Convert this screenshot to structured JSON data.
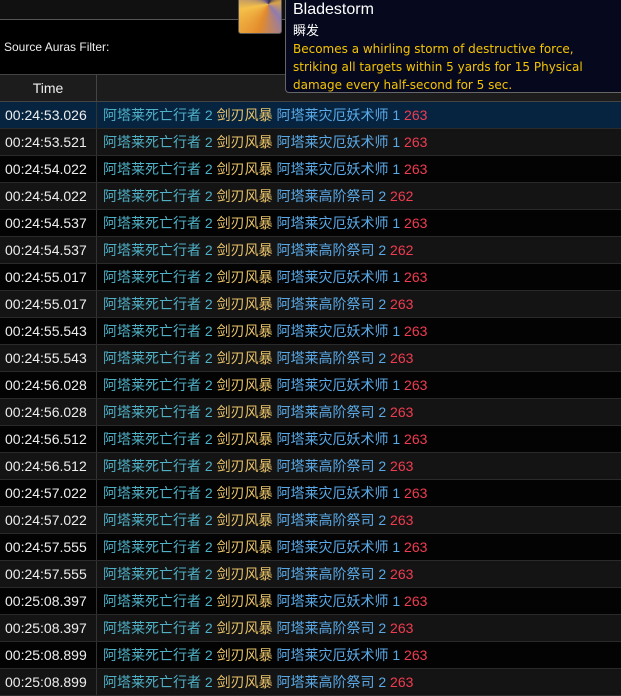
{
  "filter": {
    "label": "Source Auras Filter:"
  },
  "table": {
    "time_header": "Time",
    "event_header": ""
  },
  "tooltip": {
    "title": "Bladestorm",
    "cast": "瞬发",
    "description": "Becomes a whirling storm of destructive force, striking all targets within 5 yards for 15 Physical damage every half-second for 5 sec."
  },
  "colors": {
    "source": "#4fb0c6",
    "spell": "#e8c36a",
    "target": "#5aa9e6",
    "damage": "#f03c50",
    "selected_row": "#062440"
  },
  "rows": [
    {
      "time": "00:24:53.026",
      "source": "阿塔莱死亡行者 2",
      "spell": "剑刃风暴",
      "target": "阿塔莱灾厄妖术师 1",
      "amount": "263"
    },
    {
      "time": "00:24:53.521",
      "source": "阿塔莱死亡行者 2",
      "spell": "剑刃风暴",
      "target": "阿塔莱灾厄妖术师 1",
      "amount": "263"
    },
    {
      "time": "00:24:54.022",
      "source": "阿塔莱死亡行者 2",
      "spell": "剑刃风暴",
      "target": "阿塔莱灾厄妖术师 1",
      "amount": "263"
    },
    {
      "time": "00:24:54.022",
      "source": "阿塔莱死亡行者 2",
      "spell": "剑刃风暴",
      "target": "阿塔莱高阶祭司 2",
      "amount": "262"
    },
    {
      "time": "00:24:54.537",
      "source": "阿塔莱死亡行者 2",
      "spell": "剑刃风暴",
      "target": "阿塔莱灾厄妖术师 1",
      "amount": "263"
    },
    {
      "time": "00:24:54.537",
      "source": "阿塔莱死亡行者 2",
      "spell": "剑刃风暴",
      "target": "阿塔莱高阶祭司 2",
      "amount": "262"
    },
    {
      "time": "00:24:55.017",
      "source": "阿塔莱死亡行者 2",
      "spell": "剑刃风暴",
      "target": "阿塔莱灾厄妖术师 1",
      "amount": "263"
    },
    {
      "time": "00:24:55.017",
      "source": "阿塔莱死亡行者 2",
      "spell": "剑刃风暴",
      "target": "阿塔莱高阶祭司 2",
      "amount": "263"
    },
    {
      "time": "00:24:55.543",
      "source": "阿塔莱死亡行者 2",
      "spell": "剑刃风暴",
      "target": "阿塔莱灾厄妖术师 1",
      "amount": "263"
    },
    {
      "time": "00:24:55.543",
      "source": "阿塔莱死亡行者 2",
      "spell": "剑刃风暴",
      "target": "阿塔莱高阶祭司 2",
      "amount": "263"
    },
    {
      "time": "00:24:56.028",
      "source": "阿塔莱死亡行者 2",
      "spell": "剑刃风暴",
      "target": "阿塔莱灾厄妖术师 1",
      "amount": "263"
    },
    {
      "time": "00:24:56.028",
      "source": "阿塔莱死亡行者 2",
      "spell": "剑刃风暴",
      "target": "阿塔莱高阶祭司 2",
      "amount": "263"
    },
    {
      "time": "00:24:56.512",
      "source": "阿塔莱死亡行者 2",
      "spell": "剑刃风暴",
      "target": "阿塔莱灾厄妖术师 1",
      "amount": "263"
    },
    {
      "time": "00:24:56.512",
      "source": "阿塔莱死亡行者 2",
      "spell": "剑刃风暴",
      "target": "阿塔莱高阶祭司 2",
      "amount": "263"
    },
    {
      "time": "00:24:57.022",
      "source": "阿塔莱死亡行者 2",
      "spell": "剑刃风暴",
      "target": "阿塔莱灾厄妖术师 1",
      "amount": "263"
    },
    {
      "time": "00:24:57.022",
      "source": "阿塔莱死亡行者 2",
      "spell": "剑刃风暴",
      "target": "阿塔莱高阶祭司 2",
      "amount": "263"
    },
    {
      "time": "00:24:57.555",
      "source": "阿塔莱死亡行者 2",
      "spell": "剑刃风暴",
      "target": "阿塔莱灾厄妖术师 1",
      "amount": "263"
    },
    {
      "time": "00:24:57.555",
      "source": "阿塔莱死亡行者 2",
      "spell": "剑刃风暴",
      "target": "阿塔莱高阶祭司 2",
      "amount": "263"
    },
    {
      "time": "00:25:08.397",
      "source": "阿塔莱死亡行者 2",
      "spell": "剑刃风暴",
      "target": "阿塔莱灾厄妖术师 1",
      "amount": "263"
    },
    {
      "time": "00:25:08.397",
      "source": "阿塔莱死亡行者 2",
      "spell": "剑刃风暴",
      "target": "阿塔莱高阶祭司 2",
      "amount": "263"
    },
    {
      "time": "00:25:08.899",
      "source": "阿塔莱死亡行者 2",
      "spell": "剑刃风暴",
      "target": "阿塔莱灾厄妖术师 1",
      "amount": "263"
    },
    {
      "time": "00:25:08.899",
      "source": "阿塔莱死亡行者 2",
      "spell": "剑刃风暴",
      "target": "阿塔莱高阶祭司 2",
      "amount": "263"
    }
  ]
}
